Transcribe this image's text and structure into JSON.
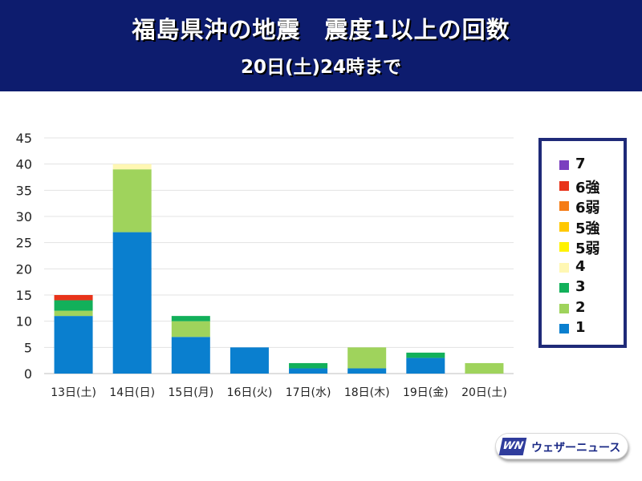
{
  "header": {
    "title": "福島県沖の地震　震度1以上の回数",
    "subtitle": "20日(土)24時まで"
  },
  "legend": {
    "items": [
      {
        "label": "7",
        "color": "#7b3fbf"
      },
      {
        "label": "6強",
        "color": "#e8331a"
      },
      {
        "label": "6弱",
        "color": "#f57c16"
      },
      {
        "label": "5強",
        "color": "#ffc800"
      },
      {
        "label": "5弱",
        "color": "#fff200"
      },
      {
        "label": "4",
        "color": "#fff7b3"
      },
      {
        "label": "3",
        "color": "#12b05a"
      },
      {
        "label": "2",
        "color": "#9fd35c"
      },
      {
        "label": "1",
        "color": "#0a7fcf"
      }
    ]
  },
  "brand": {
    "logo": "WN",
    "name": "ウェザーニュース"
  },
  "chart_data": {
    "type": "bar",
    "stacked": true,
    "categories": [
      "13日(土)",
      "14日(日)",
      "15日(月)",
      "16日(火)",
      "17日(水)",
      "18日(木)",
      "19日(金)",
      "20日(土)"
    ],
    "series": [
      {
        "name": "1",
        "color": "#0a7fcf",
        "values": [
          11,
          27,
          7,
          5,
          1,
          1,
          3,
          0
        ]
      },
      {
        "name": "2",
        "color": "#9fd35c",
        "values": [
          1,
          12,
          3,
          0,
          0,
          4,
          0,
          2
        ]
      },
      {
        "name": "3",
        "color": "#12b05a",
        "values": [
          2,
          0,
          1,
          0,
          1,
          0,
          1,
          0
        ]
      },
      {
        "name": "4",
        "color": "#fff7b3",
        "values": [
          0,
          1,
          0,
          0,
          0,
          0,
          0,
          0
        ]
      },
      {
        "name": "5弱",
        "color": "#fff200",
        "values": [
          0,
          0,
          0,
          0,
          0,
          0,
          0,
          0
        ]
      },
      {
        "name": "5強",
        "color": "#ffc800",
        "values": [
          0,
          0,
          0,
          0,
          0,
          0,
          0,
          0
        ]
      },
      {
        "name": "6弱",
        "color": "#f57c16",
        "values": [
          0,
          0,
          0,
          0,
          0,
          0,
          0,
          0
        ]
      },
      {
        "name": "6強",
        "color": "#e8331a",
        "values": [
          1,
          0,
          0,
          0,
          0,
          0,
          0,
          0
        ]
      },
      {
        "name": "7",
        "color": "#7b3fbf",
        "values": [
          0,
          0,
          0,
          0,
          0,
          0,
          0,
          0
        ]
      }
    ],
    "ylim": [
      0,
      45
    ],
    "yticks": [
      0,
      5,
      10,
      15,
      20,
      25,
      30,
      35,
      40,
      45
    ],
    "grid": true,
    "legend_position": "right"
  }
}
